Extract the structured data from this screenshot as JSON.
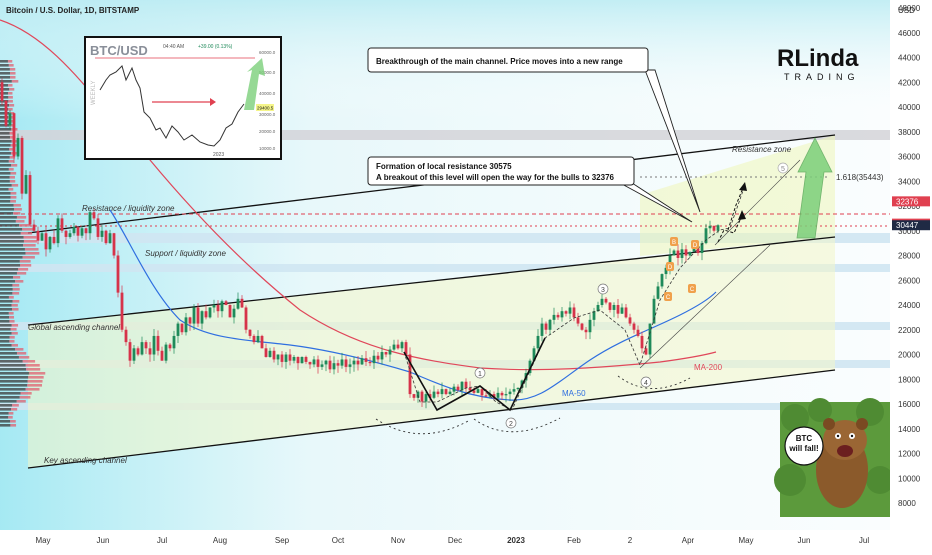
{
  "header": {
    "symbol_line": "Bitcoin / U.S. Dollar, 1D, BITSTAMP",
    "currency": "USD"
  },
  "brand": {
    "logo_big": "RLinda",
    "logo_small": "TRADING"
  },
  "inset": {
    "title": "BTC/USD",
    "time": "04:40 AM",
    "change": "+39.00 (0.13%)",
    "side_label": "WEEKLY",
    "year": "2023",
    "price_badge": "29400.5",
    "y_ticks": [
      "60000.0",
      "50000.0",
      "40000.0",
      "30000.0",
      "20000.0",
      "10000.0"
    ]
  },
  "annotations": {
    "breakthrough": "Breakthrough of the main channel. Price moves into a new range",
    "formation_line1": "Formation of local resistance 30575",
    "formation_line2": "A breakout of this level will open the way for the bulls to 32376",
    "resistance_zone": "Resistance zone",
    "resistance_liquidity": "Resistance / liquidity zone",
    "support_liquidity": "Support / liquidity zone",
    "global_channel": "Global ascending channel",
    "key_channel": "Key ascending channel",
    "fib": "1.618(35443)",
    "ma50": "MA-50",
    "ma200": "MA-200",
    "bear_text": "BTC will fall!"
  },
  "chart_data": {
    "type": "candlestick",
    "x_tick_labels": [
      "May",
      "Jun",
      "Jul",
      "Aug",
      "Sep",
      "Oct",
      "Nov",
      "Dec",
      "2023",
      "Feb",
      "2",
      "Apr",
      "May",
      "Jun",
      "Jul"
    ],
    "y_tick_labels": [
      "48000",
      "46000",
      "44000",
      "42000",
      "40000",
      "38000",
      "36000",
      "34000",
      "32000",
      "30000",
      "28000",
      "26000",
      "24000",
      "22000",
      "20000",
      "18000",
      "16000",
      "14000",
      "12000",
      "10000",
      "8000"
    ],
    "ylim": [
      7000,
      49000
    ],
    "price_levels": [
      {
        "label": "32376",
        "value": 32376,
        "color": "#e04050"
      },
      {
        "label": "30575",
        "value": 30575,
        "color": "#e04050"
      },
      {
        "label": "30447",
        "value": 30447,
        "color": "#1f2a44"
      }
    ],
    "wave_labels": [
      "1",
      "2",
      "3",
      "4",
      "5",
      "C",
      "D",
      "C",
      "B",
      "D"
    ],
    "price_path": [
      [
        0,
        42000
      ],
      [
        4,
        40500
      ],
      [
        8,
        38500
      ],
      [
        12,
        39500
      ],
      [
        16,
        36000
      ],
      [
        20,
        37500
      ],
      [
        24,
        33000
      ],
      [
        28,
        34500
      ],
      [
        32,
        30500
      ],
      [
        36,
        30000
      ],
      [
        40,
        29200
      ],
      [
        44,
        29800
      ],
      [
        48,
        28500
      ],
      [
        52,
        29500
      ],
      [
        56,
        29000
      ],
      [
        60,
        31000
      ],
      [
        64,
        30000
      ],
      [
        68,
        29500
      ],
      [
        72,
        29800
      ],
      [
        76,
        30300
      ],
      [
        80,
        29600
      ],
      [
        84,
        30200
      ],
      [
        88,
        29800
      ],
      [
        92,
        31500
      ],
      [
        96,
        31000
      ],
      [
        100,
        29500
      ],
      [
        104,
        30000
      ],
      [
        108,
        29000
      ],
      [
        112,
        29800
      ],
      [
        116,
        28000
      ],
      [
        120,
        25000
      ],
      [
        124,
        22000
      ],
      [
        128,
        21000
      ],
      [
        132,
        19500
      ],
      [
        136,
        20500
      ],
      [
        140,
        20000
      ],
      [
        144,
        21000
      ],
      [
        148,
        20500
      ],
      [
        152,
        20000
      ],
      [
        156,
        21500
      ],
      [
        160,
        20300
      ],
      [
        164,
        19500
      ],
      [
        168,
        20800
      ],
      [
        172,
        20500
      ],
      [
        176,
        21500
      ],
      [
        180,
        22500
      ],
      [
        184,
        21800
      ],
      [
        188,
        23000
      ],
      [
        192,
        22500
      ],
      [
        196,
        23800
      ],
      [
        200,
        22500
      ],
      [
        204,
        23500
      ],
      [
        208,
        23000
      ],
      [
        212,
        23800
      ],
      [
        216,
        24000
      ],
      [
        220,
        23500
      ],
      [
        224,
        24300
      ],
      [
        228,
        24000
      ],
      [
        232,
        23000
      ],
      [
        236,
        23700
      ],
      [
        240,
        24500
      ],
      [
        244,
        23800
      ],
      [
        248,
        22000
      ],
      [
        252,
        21500
      ],
      [
        256,
        21000
      ],
      [
        260,
        21500
      ],
      [
        264,
        20500
      ],
      [
        268,
        19800
      ],
      [
        272,
        20300
      ],
      [
        276,
        19600
      ],
      [
        280,
        20000
      ],
      [
        284,
        19400
      ],
      [
        288,
        20000
      ],
      [
        292,
        19500
      ],
      [
        296,
        19800
      ],
      [
        300,
        19300
      ],
      [
        304,
        19800
      ],
      [
        308,
        19400
      ],
      [
        312,
        19200
      ],
      [
        316,
        19600
      ],
      [
        320,
        19000
      ],
      [
        324,
        19200
      ],
      [
        328,
        19500
      ],
      [
        332,
        18800
      ],
      [
        336,
        19300
      ],
      [
        340,
        19100
      ],
      [
        344,
        19600
      ],
      [
        348,
        19000
      ],
      [
        352,
        19200
      ],
      [
        356,
        19500
      ],
      [
        360,
        19200
      ],
      [
        364,
        19700
      ],
      [
        368,
        19400
      ],
      [
        372,
        19300
      ],
      [
        376,
        19900
      ],
      [
        380,
        19600
      ],
      [
        384,
        20200
      ],
      [
        388,
        20000
      ],
      [
        392,
        20400
      ],
      [
        396,
        20800
      ],
      [
        400,
        20500
      ],
      [
        404,
        21000
      ],
      [
        408,
        20000
      ],
      [
        412,
        16800
      ],
      [
        416,
        16500
      ],
      [
        420,
        17000
      ],
      [
        424,
        16200
      ],
      [
        428,
        16800
      ],
      [
        432,
        16500
      ],
      [
        436,
        17000
      ],
      [
        440,
        16800
      ],
      [
        444,
        17200
      ],
      [
        448,
        16800
      ],
      [
        452,
        17000
      ],
      [
        456,
        17400
      ],
      [
        460,
        17100
      ],
      [
        464,
        17800
      ],
      [
        468,
        17300
      ],
      [
        472,
        17100
      ],
      [
        476,
        16900
      ],
      [
        480,
        17200
      ],
      [
        484,
        16700
      ],
      [
        488,
        16600
      ],
      [
        492,
        16800
      ],
      [
        496,
        16500
      ],
      [
        500,
        16900
      ],
      [
        504,
        16700
      ],
      [
        508,
        16800
      ],
      [
        512,
        17000
      ],
      [
        516,
        17200
      ],
      [
        520,
        17300
      ],
      [
        524,
        17900
      ],
      [
        528,
        18500
      ],
      [
        532,
        19500
      ],
      [
        536,
        20500
      ],
      [
        540,
        21500
      ],
      [
        544,
        22500
      ],
      [
        548,
        22000
      ],
      [
        552,
        22800
      ],
      [
        556,
        23200
      ],
      [
        560,
        23000
      ],
      [
        564,
        23500
      ],
      [
        568,
        23300
      ],
      [
        572,
        23800
      ],
      [
        576,
        23000
      ],
      [
        580,
        22500
      ],
      [
        584,
        22000
      ],
      [
        588,
        21800
      ],
      [
        592,
        22800
      ],
      [
        596,
        23500
      ],
      [
        600,
        24000
      ],
      [
        604,
        24500
      ],
      [
        608,
        24200
      ],
      [
        612,
        23600
      ],
      [
        616,
        24000
      ],
      [
        620,
        23300
      ],
      [
        624,
        23800
      ],
      [
        628,
        23000
      ],
      [
        632,
        22500
      ],
      [
        636,
        22000
      ],
      [
        640,
        21500
      ],
      [
        644,
        20500
      ],
      [
        648,
        20000
      ],
      [
        652,
        22500
      ],
      [
        656,
        24500
      ],
      [
        660,
        25500
      ],
      [
        664,
        26500
      ],
      [
        668,
        27000
      ],
      [
        672,
        28000
      ],
      [
        676,
        28400
      ],
      [
        680,
        27800
      ],
      [
        684,
        28500
      ],
      [
        688,
        28000
      ],
      [
        692,
        28300
      ],
      [
        696,
        28600
      ],
      [
        700,
        28200
      ],
      [
        704,
        29000
      ],
      [
        708,
        30200
      ],
      [
        712,
        30400
      ],
      [
        716,
        30000
      ],
      [
        720,
        30447
      ]
    ],
    "moving_averages": [
      {
        "name": "MA-50",
        "color": "#2f6fe0"
      },
      {
        "name": "MA-200",
        "color": "#e0475a"
      }
    ],
    "series": [
      {
        "name": "Global ascending channel",
        "color": "#111111"
      },
      {
        "name": "Key ascending channel",
        "color": "#111111"
      }
    ],
    "grid": false,
    "legend": "none"
  },
  "colors": {
    "up_candle": "#1f8a5a",
    "down_candle": "#d6334a",
    "zone_blue": "#cfe6f2",
    "zone_gray": "#d4d4d8",
    "channel_fill": "#f3f6c8",
    "arrow_green": "#7ccf7a",
    "tag_orange": "#f0a04b"
  }
}
